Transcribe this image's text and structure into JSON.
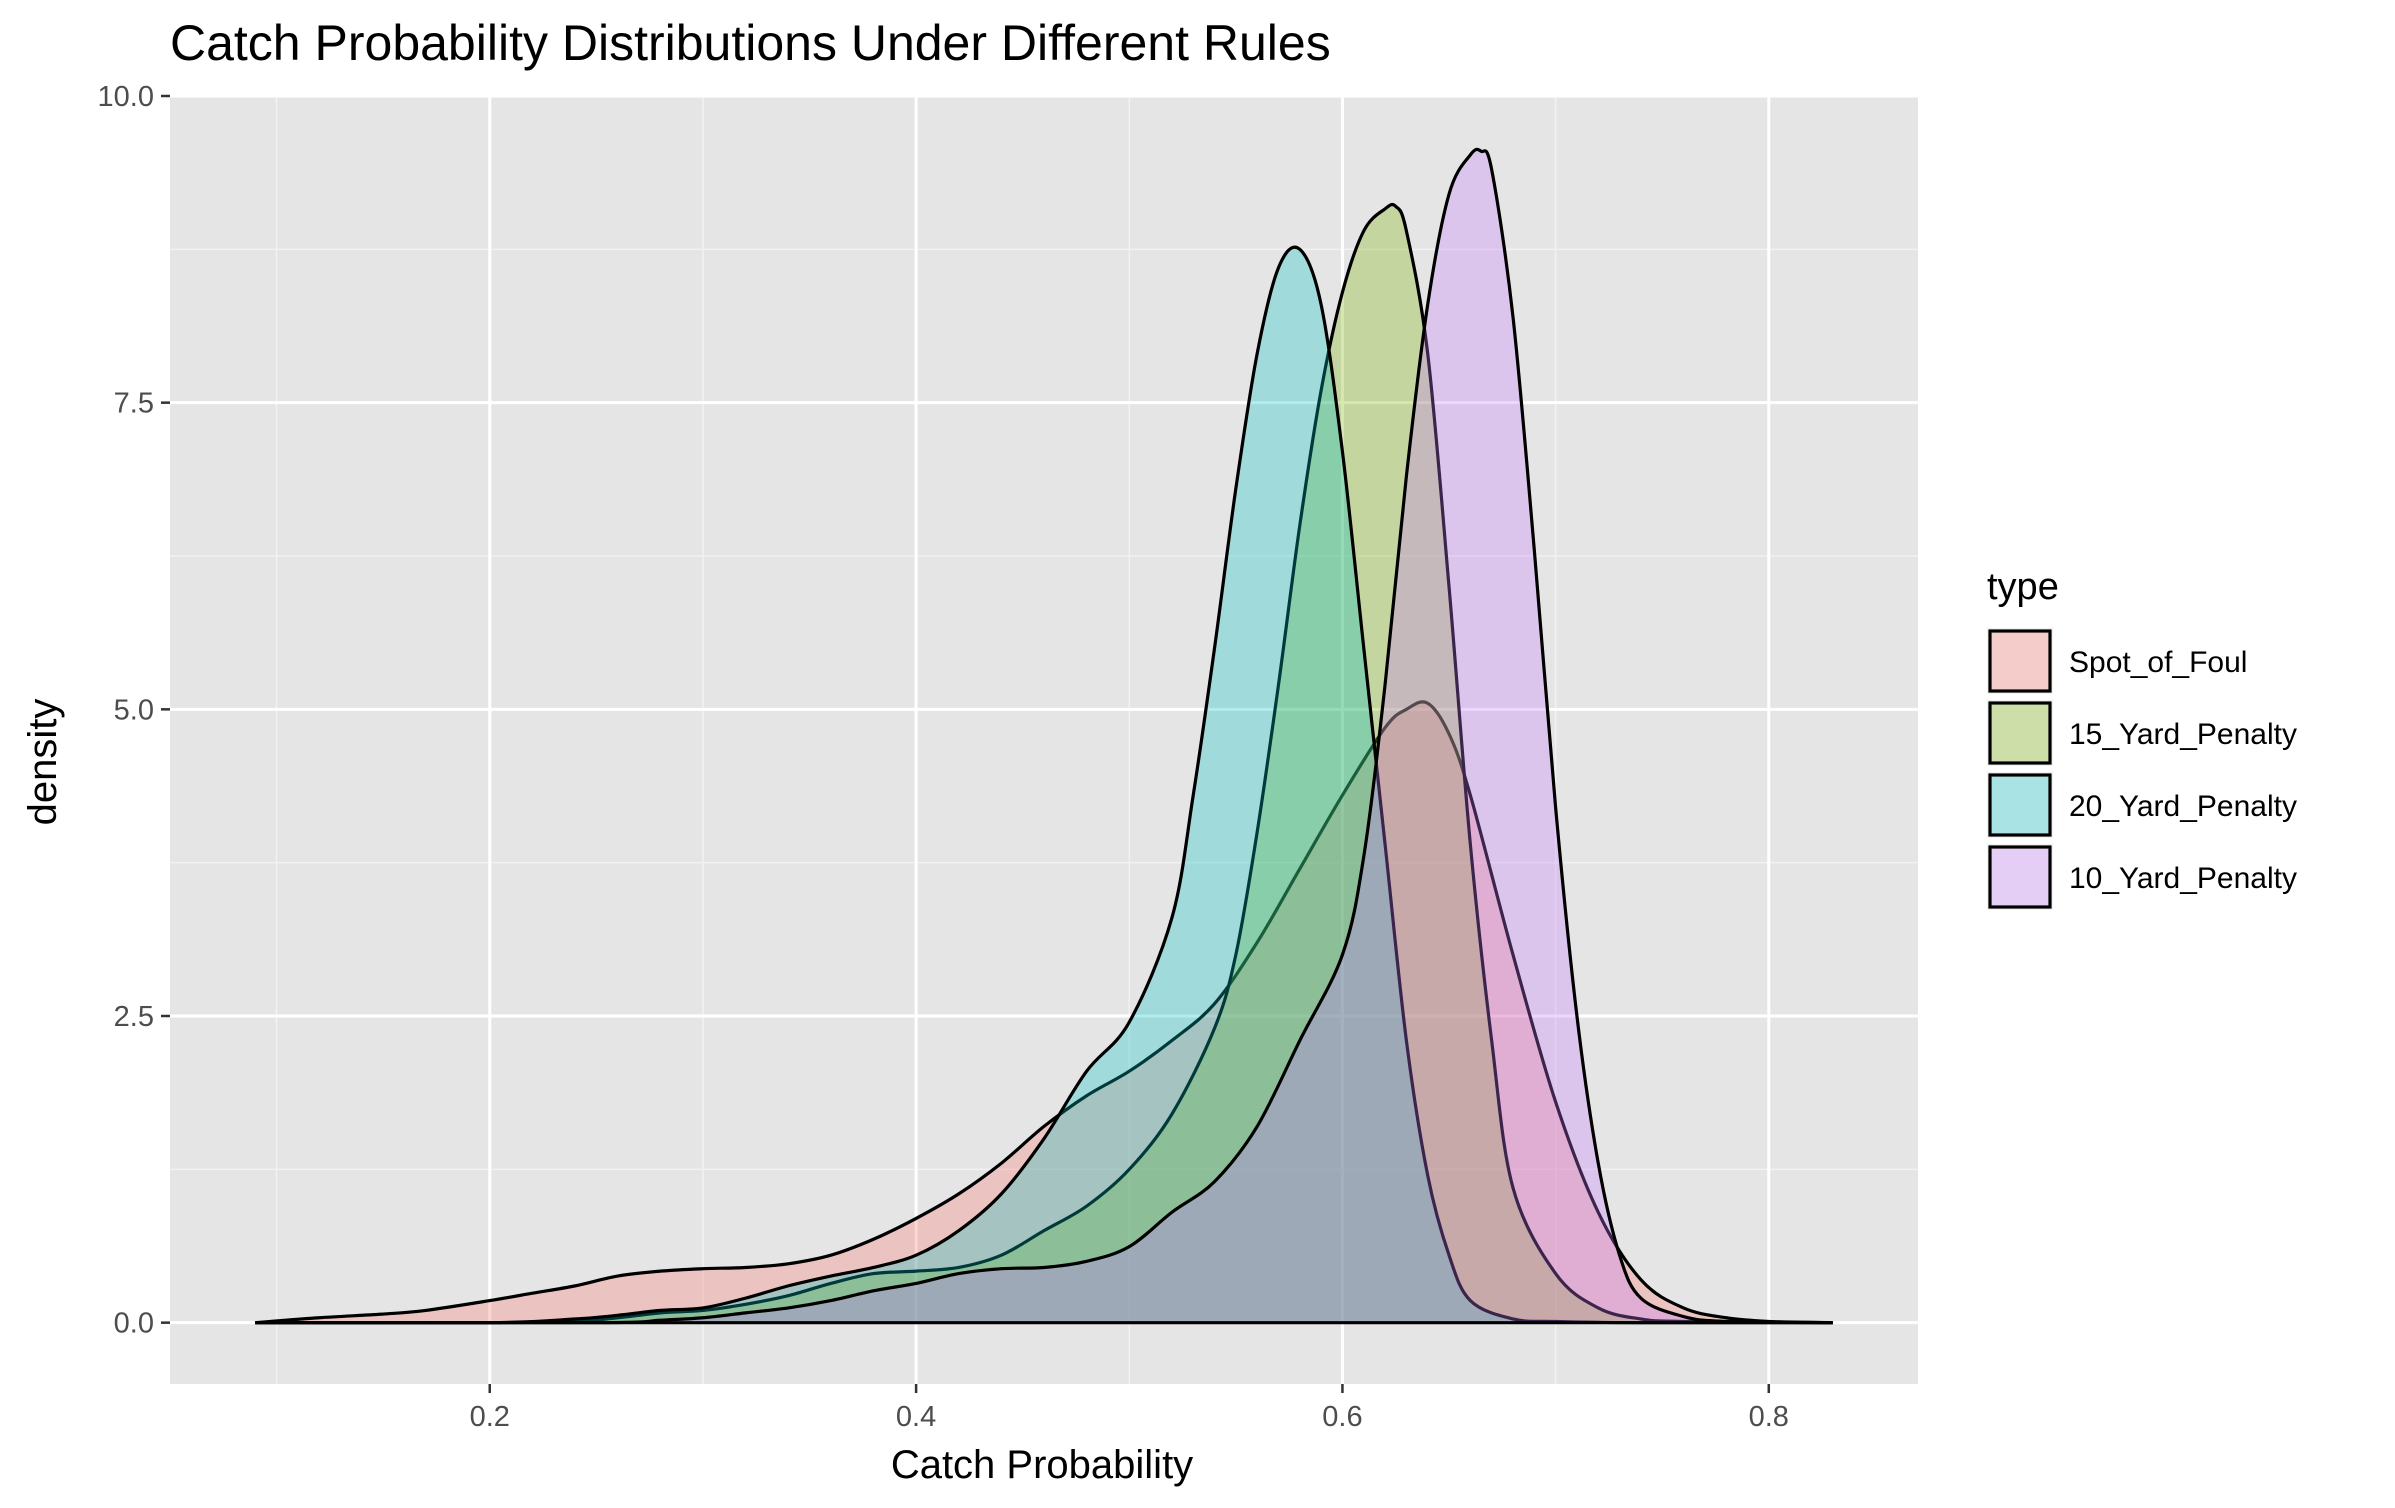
{
  "chart_data": {
    "type": "area",
    "subtype": "density",
    "title": "Catch Probability Distributions Under Different Rules",
    "xlabel": "Catch Probability",
    "ylabel": "density",
    "xlim": [
      0.05,
      0.87
    ],
    "ylim": [
      -0.5,
      10
    ],
    "x_ticks": [
      0.2,
      0.4,
      0.6,
      0.8
    ],
    "x_tick_labels": [
      "0.2",
      "0.4",
      "0.6",
      "0.8"
    ],
    "x_minor_ticks": [
      0.1,
      0.3,
      0.5,
      0.7
    ],
    "y_ticks": [
      0,
      2.5,
      5,
      7.5,
      10
    ],
    "y_tick_labels": [
      "0.0",
      "2.5",
      "5.0",
      "7.5",
      "10.0"
    ],
    "y_minor_ticks": [
      1.25,
      3.75,
      6.25,
      8.75
    ],
    "grid": true,
    "background": "#E5E5E5",
    "legend": {
      "title": "type",
      "position": "right"
    },
    "series": [
      {
        "name": "Spot_of_Foul",
        "color": "#F8766D",
        "x": [
          0.09,
          0.12,
          0.15,
          0.17,
          0.2,
          0.22,
          0.24,
          0.26,
          0.28,
          0.3,
          0.32,
          0.34,
          0.36,
          0.38,
          0.4,
          0.42,
          0.44,
          0.46,
          0.48,
          0.5,
          0.52,
          0.54,
          0.56,
          0.58,
          0.6,
          0.62,
          0.63,
          0.64,
          0.65,
          0.66,
          0.68,
          0.7,
          0.72,
          0.74,
          0.76,
          0.78,
          0.8,
          0.83
        ],
        "y": [
          0,
          0.04,
          0.07,
          0.1,
          0.18,
          0.24,
          0.3,
          0.38,
          0.42,
          0.44,
          0.45,
          0.48,
          0.55,
          0.68,
          0.85,
          1.05,
          1.3,
          1.6,
          1.85,
          2.05,
          2.3,
          2.6,
          3.1,
          3.7,
          4.3,
          4.85,
          5.0,
          5.05,
          4.8,
          4.3,
          3.0,
          1.8,
          0.9,
          0.35,
          0.12,
          0.04,
          0.01,
          0
        ]
      },
      {
        "name": "15_Yard_Penalty",
        "color": "#7CAE00",
        "x": [
          0.09,
          0.2,
          0.24,
          0.26,
          0.28,
          0.3,
          0.32,
          0.34,
          0.36,
          0.38,
          0.4,
          0.42,
          0.44,
          0.46,
          0.48,
          0.5,
          0.52,
          0.54,
          0.55,
          0.56,
          0.57,
          0.58,
          0.59,
          0.6,
          0.61,
          0.62,
          0.625,
          0.63,
          0.64,
          0.65,
          0.66,
          0.67,
          0.68,
          0.7,
          0.72,
          0.74,
          0.76,
          0.83
        ],
        "y": [
          0,
          0,
          0.01,
          0.04,
          0.08,
          0.1,
          0.15,
          0.22,
          0.32,
          0.4,
          0.42,
          0.45,
          0.55,
          0.75,
          0.95,
          1.25,
          1.7,
          2.4,
          3.0,
          4.0,
          5.2,
          6.5,
          7.6,
          8.4,
          8.9,
          9.08,
          9.1,
          8.9,
          7.9,
          6.0,
          3.9,
          2.3,
          1.1,
          0.4,
          0.12,
          0.03,
          0.01,
          0
        ]
      },
      {
        "name": "20_Yard_Penalty",
        "color": "#00BFC4",
        "x": [
          0.09,
          0.2,
          0.24,
          0.26,
          0.28,
          0.3,
          0.32,
          0.34,
          0.36,
          0.38,
          0.4,
          0.42,
          0.44,
          0.46,
          0.48,
          0.5,
          0.52,
          0.53,
          0.54,
          0.55,
          0.56,
          0.57,
          0.58,
          0.59,
          0.6,
          0.61,
          0.62,
          0.63,
          0.64,
          0.65,
          0.66,
          0.68,
          0.7,
          0.74,
          0.83
        ],
        "y": [
          0,
          0,
          0.03,
          0.06,
          0.1,
          0.12,
          0.2,
          0.3,
          0.38,
          0.45,
          0.55,
          0.75,
          1.05,
          1.5,
          2.05,
          2.45,
          3.3,
          4.3,
          5.5,
          6.8,
          7.9,
          8.6,
          8.75,
          8.3,
          7.1,
          5.5,
          3.9,
          2.3,
          1.2,
          0.55,
          0.18,
          0.03,
          0.01,
          0,
          0
        ]
      },
      {
        "name": "10_Yard_Penalty",
        "color": "#C77CFF",
        "x": [
          0.09,
          0.25,
          0.28,
          0.3,
          0.32,
          0.34,
          0.36,
          0.38,
          0.4,
          0.42,
          0.44,
          0.46,
          0.48,
          0.5,
          0.52,
          0.54,
          0.56,
          0.58,
          0.6,
          0.61,
          0.62,
          0.63,
          0.64,
          0.65,
          0.66,
          0.665,
          0.67,
          0.68,
          0.69,
          0.7,
          0.71,
          0.72,
          0.73,
          0.74,
          0.76,
          0.78,
          0.83
        ],
        "y": [
          0,
          0,
          0.02,
          0.04,
          0.08,
          0.12,
          0.18,
          0.26,
          0.32,
          0.4,
          0.44,
          0.45,
          0.5,
          0.62,
          0.9,
          1.15,
          1.6,
          2.3,
          3.0,
          3.8,
          5.2,
          6.9,
          8.3,
          9.2,
          9.52,
          9.55,
          9.4,
          8.2,
          6.3,
          4.2,
          2.5,
          1.3,
          0.55,
          0.2,
          0.05,
          0.01,
          0
        ]
      }
    ]
  }
}
